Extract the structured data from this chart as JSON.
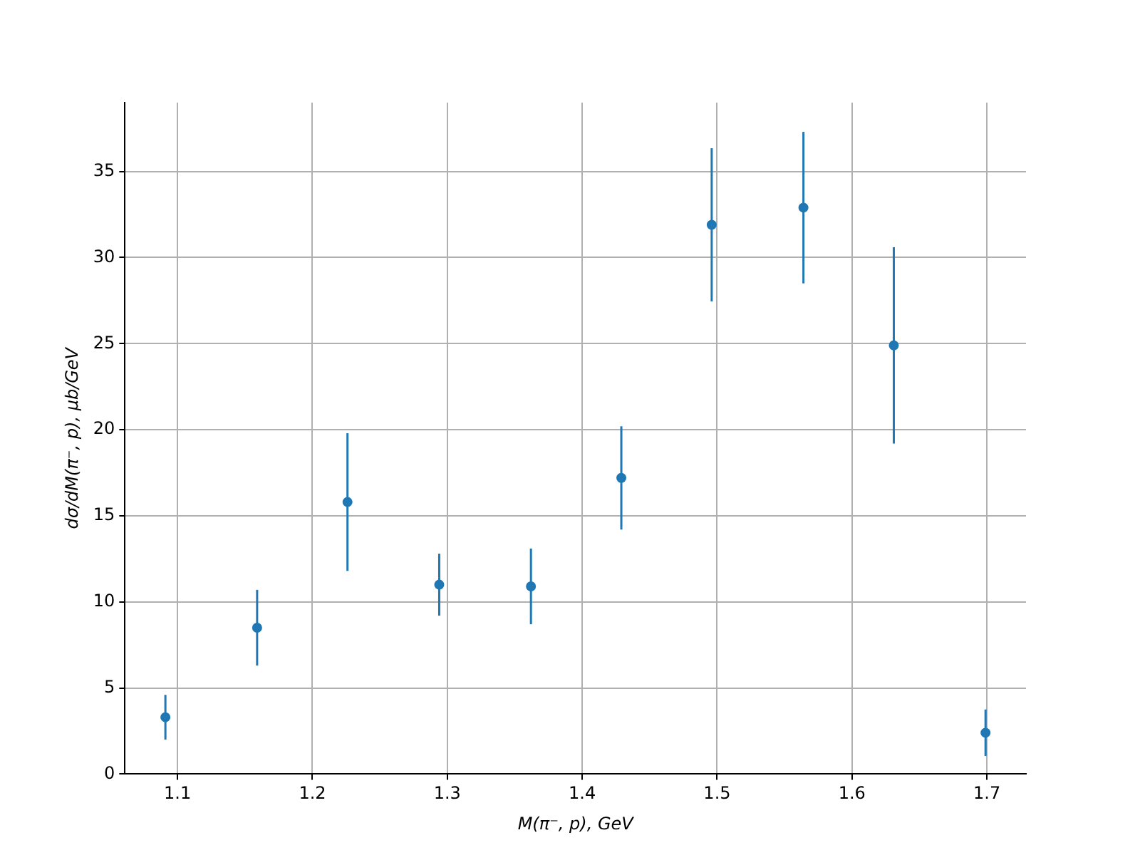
{
  "chart_data": {
    "type": "scatter",
    "xlabel": "M(π⁻, p), GeV",
    "ylabel": "dσ/dM(π⁻, p), μb/GeV",
    "x": [
      1.091,
      1.159,
      1.226,
      1.294,
      1.362,
      1.429,
      1.496,
      1.564,
      1.631,
      1.699
    ],
    "values": [
      3.3,
      8.5,
      15.8,
      11.0,
      10.9,
      17.2,
      31.9,
      32.9,
      24.9,
      2.4
    ],
    "errors": [
      1.3,
      2.2,
      4.0,
      1.8,
      2.2,
      3.0,
      4.45,
      4.4,
      5.7,
      1.35
    ],
    "color": "#1f77b4",
    "marker": "circle",
    "grid": true,
    "xlim": [
      1.061,
      1.729
    ],
    "xticks": [
      1.1,
      1.2,
      1.3,
      1.4,
      1.5,
      1.6,
      1.7
    ],
    "ylim": [
      0,
      39
    ],
    "yticks": [
      0,
      5,
      10,
      15,
      20,
      25,
      30,
      35
    ]
  }
}
